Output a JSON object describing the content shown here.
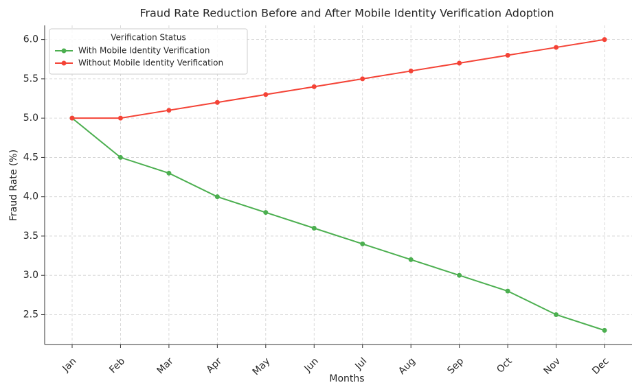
{
  "chart_data": {
    "type": "line",
    "title": "Fraud Rate Reduction Before and After Mobile Identity Verification Adoption",
    "x_label": "Months",
    "y_label": "Fraud Rate (%)",
    "categories": [
      "Jan",
      "Feb",
      "Mar",
      "Apr",
      "May",
      "Jun",
      "Jul",
      "Aug",
      "Sep",
      "Oct",
      "Nov",
      "Dec"
    ],
    "series": [
      {
        "name": "With Mobile Identity Verification",
        "color": "#4caf50",
        "values": [
          5.0,
          4.5,
          4.3,
          4.0,
          3.8,
          3.6,
          3.4,
          3.2,
          3.0,
          2.8,
          2.5,
          2.3
        ]
      },
      {
        "name": "Without Mobile Identity Verification",
        "color": "#f44336",
        "values": [
          5.0,
          5.0,
          5.1,
          5.2,
          5.3,
          5.4,
          5.5,
          5.6,
          5.7,
          5.8,
          5.9,
          6.0
        ]
      }
    ],
    "ylim": [
      2.12,
      6.18
    ],
    "yticks": [
      2.5,
      {
        "value": 3,
        "label": "3.0"
      },
      3.5,
      {
        "value": 4,
        "label": "4.0"
      },
      4.5,
      {
        "value": 5,
        "label": "5.0"
      },
      5.5,
      {
        "value": 6,
        "label": "6.0"
      }
    ],
    "grid": true,
    "legend_title": "Verification Status",
    "legend_position": "upper left"
  }
}
